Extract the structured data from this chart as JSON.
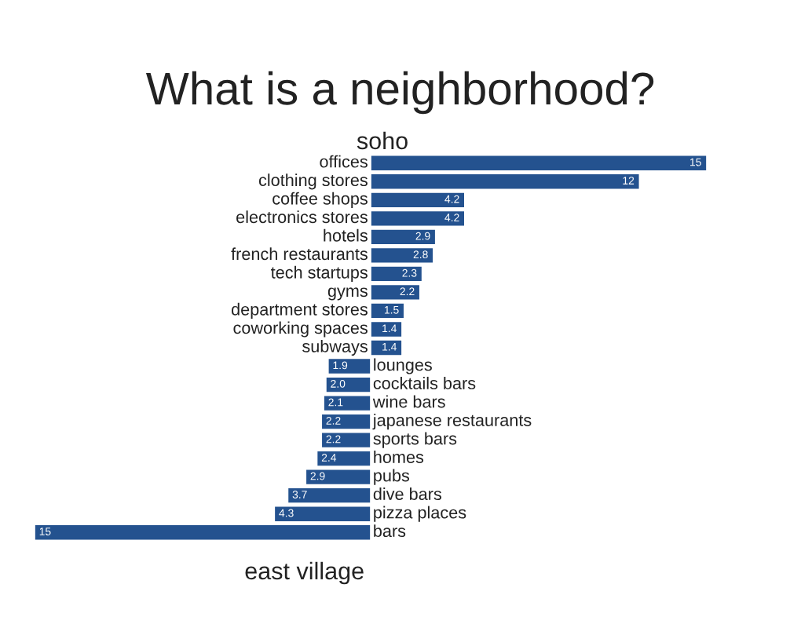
{
  "chart_data": [
    {
      "type": "bar",
      "orientation": "horizontal",
      "title": "What is a neighborhood?",
      "subtitle": "soho",
      "categories": [
        "offices",
        "clothing stores",
        "coffee shops",
        "electronics stores",
        "hotels",
        "french restaurants",
        "tech startups",
        "gyms",
        "department stores",
        "coworking spaces",
        "subways"
      ],
      "values": [
        15,
        12,
        4.2,
        4.2,
        2.9,
        2.8,
        2.3,
        2.2,
        1.5,
        1.4,
        1.4
      ],
      "value_labels": [
        "15",
        "12",
        "4.2",
        "4.2",
        "2.9",
        "2.8",
        "2.3",
        "2.2",
        "1.5",
        "1.4",
        "1.4"
      ],
      "color": "#24528f"
    },
    {
      "type": "bar",
      "orientation": "horizontal",
      "title": "east village",
      "categories": [
        "lounges",
        "cocktails bars",
        "wine bars",
        "japanese restaurants",
        "sports bars",
        "homes",
        "pubs",
        "dive bars",
        "pizza places",
        "bars"
      ],
      "values": [
        1.9,
        2.0,
        2.1,
        2.2,
        2.2,
        2.4,
        2.9,
        3.7,
        4.3,
        15
      ],
      "value_labels": [
        "1.9",
        "2.0",
        "2.1",
        "2.2",
        "2.2",
        "2.4",
        "2.9",
        "3.7",
        "4.3",
        "15"
      ],
      "color": "#24528f"
    }
  ]
}
